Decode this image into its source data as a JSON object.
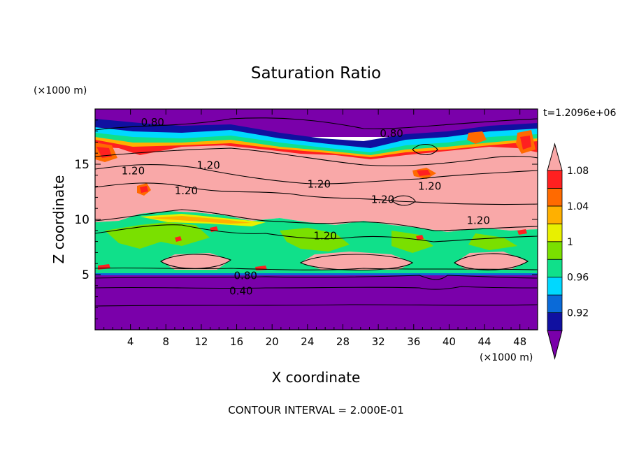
{
  "chart_data": {
    "type": "heatmap",
    "title": "Saturation Ratio",
    "xlabel": "X coordinate",
    "ylabel": "Z coordinate",
    "x_unit": "(×1000 m)",
    "y_unit": "(×1000 m)",
    "time_label": "t=1.2096e+06",
    "footer": "CONTOUR INTERVAL = 2.000E-01",
    "xlim": [
      0,
      50
    ],
    "ylim": [
      0,
      20
    ],
    "x_ticks": [
      4,
      8,
      12,
      16,
      20,
      24,
      28,
      32,
      36,
      40,
      44,
      48
    ],
    "y_ticks": [
      5,
      10,
      15
    ],
    "colorbar": {
      "labels": [
        "0.92",
        "0.96",
        "1",
        "1.04",
        "1.08"
      ],
      "colors": [
        "#7a00aa",
        "#1010a0",
        "#0a6ad8",
        "#00d8ff",
        "#10e08a",
        "#7ae000",
        "#e8f000",
        "#ffb000",
        "#ff6a00",
        "#ff2020",
        "#f9a8a8"
      ]
    },
    "contour_labels": [
      {
        "text": "0.80",
        "x": 6.5,
        "y": 18.8
      },
      {
        "text": "0.80",
        "x": 33.5,
        "y": 17.8
      },
      {
        "text": "1.20",
        "x": 4.3,
        "y": 14.4
      },
      {
        "text": "1.20",
        "x": 12.8,
        "y": 14.9
      },
      {
        "text": "1.20",
        "x": 10.3,
        "y": 12.6
      },
      {
        "text": "1.20",
        "x": 25.3,
        "y": 13.2
      },
      {
        "text": "1.20",
        "x": 32.5,
        "y": 11.8
      },
      {
        "text": "1.20",
        "x": 37.8,
        "y": 13.0
      },
      {
        "text": "1.20",
        "x": 43.3,
        "y": 9.9
      },
      {
        "text": "1.20",
        "x": 26.0,
        "y": 8.5
      },
      {
        "text": "0.80",
        "x": 17.0,
        "y": 4.9
      },
      {
        "text": "0.40",
        "x": 16.5,
        "y": 3.5
      }
    ]
  }
}
